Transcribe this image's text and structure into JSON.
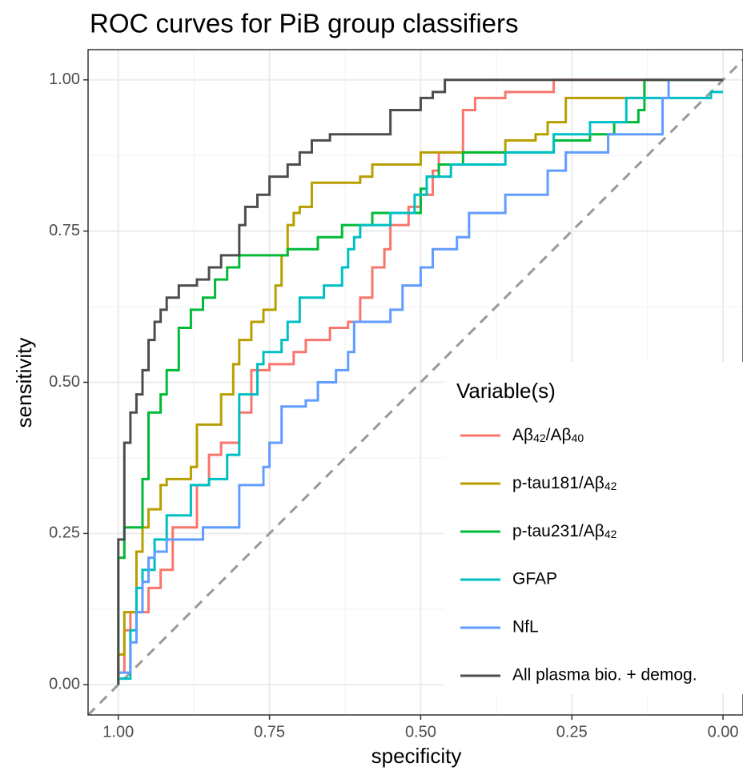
{
  "chart_data": {
    "type": "step-line",
    "title": "ROC curves for PiB group classifiers",
    "x_label": "specificity",
    "y_label": "sensitivity",
    "legend_title": "Variable(s)",
    "legend_position": "bottom-right",
    "xlim": [
      1.05,
      -0.033
    ],
    "ylim": [
      -0.05,
      1.05
    ],
    "xticks": [
      {
        "value": 1,
        "label": "1.00"
      },
      {
        "value": 0.75,
        "label": "0.75"
      },
      {
        "value": 0.5,
        "label": "0.50"
      },
      {
        "value": 0.25,
        "label": "0.25"
      },
      {
        "value": 0,
        "label": "0.00"
      }
    ],
    "yticks": [
      {
        "value": 0,
        "label": "0.00"
      },
      {
        "value": 0.25,
        "label": "0.25"
      },
      {
        "value": 0.5,
        "label": "0.50"
      },
      {
        "value": 0.75,
        "label": "0.75"
      },
      {
        "value": 1,
        "label": "1.00"
      }
    ],
    "grid": true,
    "diagonal": true,
    "series": [
      {
        "name": "Aβ42/Aβ40",
        "color": "#F8766D",
        "x": [
          1,
          1,
          0.99,
          0.99,
          0.98,
          0.98,
          0.95,
          0.95,
          0.93,
          0.93,
          0.91,
          0.91,
          0.87,
          0.87,
          0.85,
          0.85,
          0.83,
          0.83,
          0.8,
          0.8,
          0.78,
          0.78,
          0.75,
          0.75,
          0.71,
          0.71,
          0.69,
          0.69,
          0.65,
          0.65,
          0.62,
          0.62,
          0.6,
          0.6,
          0.58,
          0.58,
          0.56,
          0.56,
          0.55,
          0.55,
          0.52,
          0.52,
          0.5,
          0.5,
          0.48,
          0.48,
          0.47,
          0.47,
          0.43,
          0.43,
          0.41,
          0.41,
          0.36,
          0.36,
          0.28,
          0.28,
          0
        ],
        "values": [
          0,
          0.02,
          0.02,
          0.09,
          0.09,
          0.12,
          0.12,
          0.16,
          0.16,
          0.19,
          0.19,
          0.26,
          0.26,
          0.33,
          0.33,
          0.38,
          0.38,
          0.4,
          0.4,
          0.45,
          0.45,
          0.52,
          0.52,
          0.53,
          0.53,
          0.55,
          0.55,
          0.57,
          0.57,
          0.59,
          0.59,
          0.6,
          0.6,
          0.64,
          0.64,
          0.69,
          0.69,
          0.72,
          0.72,
          0.76,
          0.76,
          0.79,
          0.79,
          0.81,
          0.81,
          0.85,
          0.85,
          0.88,
          0.88,
          0.95,
          0.95,
          0.97,
          0.97,
          0.98,
          0.98,
          1,
          1
        ]
      },
      {
        "name": "p-tau181/Aβ42",
        "color": "#B79F00",
        "x": [
          1,
          1,
          0.99,
          0.99,
          0.97,
          0.97,
          0.96,
          0.96,
          0.95,
          0.95,
          0.93,
          0.93,
          0.92,
          0.92,
          0.88,
          0.88,
          0.87,
          0.87,
          0.83,
          0.83,
          0.81,
          0.81,
          0.8,
          0.8,
          0.78,
          0.78,
          0.76,
          0.76,
          0.74,
          0.74,
          0.73,
          0.73,
          0.72,
          0.72,
          0.71,
          0.71,
          0.7,
          0.7,
          0.68,
          0.68,
          0.6,
          0.6,
          0.58,
          0.58,
          0.5,
          0.5,
          0.36,
          0.36,
          0.31,
          0.31,
          0.29,
          0.29,
          0.26,
          0.26,
          0.13,
          0.13,
          0
        ],
        "values": [
          0,
          0.05,
          0.05,
          0.12,
          0.12,
          0.22,
          0.22,
          0.26,
          0.26,
          0.29,
          0.29,
          0.33,
          0.33,
          0.34,
          0.34,
          0.36,
          0.36,
          0.43,
          0.43,
          0.48,
          0.48,
          0.53,
          0.53,
          0.57,
          0.57,
          0.6,
          0.6,
          0.62,
          0.62,
          0.66,
          0.66,
          0.71,
          0.71,
          0.76,
          0.76,
          0.78,
          0.78,
          0.79,
          0.79,
          0.83,
          0.83,
          0.84,
          0.84,
          0.86,
          0.86,
          0.88,
          0.88,
          0.9,
          0.9,
          0.91,
          0.91,
          0.93,
          0.93,
          0.97,
          0.97,
          1,
          1
        ]
      },
      {
        "name": "p-tau231/Aβ42",
        "color": "#00BA38",
        "x": [
          1,
          1,
          0.99,
          0.99,
          0.96,
          0.96,
          0.95,
          0.95,
          0.93,
          0.93,
          0.92,
          0.92,
          0.9,
          0.9,
          0.88,
          0.88,
          0.86,
          0.86,
          0.84,
          0.84,
          0.82,
          0.82,
          0.8,
          0.8,
          0.72,
          0.72,
          0.67,
          0.67,
          0.63,
          0.63,
          0.58,
          0.58,
          0.5,
          0.5,
          0.49,
          0.49,
          0.47,
          0.47,
          0.43,
          0.43,
          0.28,
          0.28,
          0.22,
          0.22,
          0.18,
          0.18,
          0.14,
          0.14,
          0.13,
          0.13,
          0
        ],
        "values": [
          0,
          0.21,
          0.21,
          0.26,
          0.26,
          0.34,
          0.34,
          0.45,
          0.45,
          0.48,
          0.48,
          0.52,
          0.52,
          0.59,
          0.59,
          0.62,
          0.62,
          0.64,
          0.64,
          0.67,
          0.67,
          0.69,
          0.69,
          0.71,
          0.71,
          0.72,
          0.72,
          0.74,
          0.74,
          0.76,
          0.76,
          0.78,
          0.78,
          0.82,
          0.82,
          0.84,
          0.84,
          0.86,
          0.86,
          0.88,
          0.88,
          0.9,
          0.9,
          0.91,
          0.91,
          0.93,
          0.93,
          0.95,
          0.95,
          1,
          1
        ]
      },
      {
        "name": "GFAP",
        "color": "#00BFC4",
        "x": [
          1,
          1,
          0.98,
          0.98,
          0.97,
          0.97,
          0.96,
          0.96,
          0.94,
          0.94,
          0.92,
          0.92,
          0.88,
          0.88,
          0.85,
          0.85,
          0.82,
          0.82,
          0.8,
          0.8,
          0.77,
          0.77,
          0.76,
          0.76,
          0.73,
          0.73,
          0.72,
          0.72,
          0.7,
          0.7,
          0.66,
          0.66,
          0.63,
          0.63,
          0.62,
          0.62,
          0.61,
          0.61,
          0.6,
          0.6,
          0.55,
          0.55,
          0.51,
          0.51,
          0.49,
          0.49,
          0.45,
          0.45,
          0.36,
          0.36,
          0.28,
          0.28,
          0.22,
          0.22,
          0.16,
          0.16,
          0.02,
          0.02,
          0
        ],
        "values": [
          0,
          0.01,
          0.01,
          0.09,
          0.09,
          0.16,
          0.16,
          0.19,
          0.19,
          0.24,
          0.24,
          0.28,
          0.28,
          0.33,
          0.33,
          0.34,
          0.34,
          0.38,
          0.38,
          0.48,
          0.48,
          0.53,
          0.53,
          0.55,
          0.55,
          0.57,
          0.57,
          0.6,
          0.6,
          0.64,
          0.64,
          0.66,
          0.66,
          0.69,
          0.69,
          0.72,
          0.72,
          0.74,
          0.74,
          0.76,
          0.76,
          0.78,
          0.78,
          0.81,
          0.81,
          0.84,
          0.84,
          0.86,
          0.86,
          0.88,
          0.88,
          0.91,
          0.91,
          0.93,
          0.93,
          0.97,
          0.97,
          0.98,
          0.98
        ]
      },
      {
        "name": "NfL",
        "color": "#619CFF",
        "x": [
          1,
          1,
          0.98,
          0.98,
          0.97,
          0.97,
          0.96,
          0.96,
          0.95,
          0.95,
          0.94,
          0.94,
          0.92,
          0.92,
          0.86,
          0.86,
          0.8,
          0.8,
          0.76,
          0.76,
          0.75,
          0.75,
          0.73,
          0.73,
          0.69,
          0.69,
          0.67,
          0.67,
          0.64,
          0.64,
          0.62,
          0.62,
          0.61,
          0.61,
          0.55,
          0.55,
          0.53,
          0.53,
          0.5,
          0.5,
          0.48,
          0.48,
          0.44,
          0.44,
          0.42,
          0.42,
          0.36,
          0.36,
          0.29,
          0.29,
          0.26,
          0.26,
          0.19,
          0.19,
          0.1,
          0.1,
          0.09,
          0.09,
          0
        ],
        "values": [
          0,
          0.02,
          0.02,
          0.07,
          0.07,
          0.12,
          0.12,
          0.17,
          0.17,
          0.21,
          0.21,
          0.22,
          0.22,
          0.24,
          0.24,
          0.26,
          0.26,
          0.33,
          0.33,
          0.36,
          0.36,
          0.4,
          0.4,
          0.46,
          0.46,
          0.47,
          0.47,
          0.5,
          0.5,
          0.52,
          0.52,
          0.55,
          0.55,
          0.6,
          0.6,
          0.62,
          0.62,
          0.66,
          0.66,
          0.69,
          0.69,
          0.72,
          0.72,
          0.74,
          0.74,
          0.78,
          0.78,
          0.81,
          0.81,
          0.85,
          0.85,
          0.88,
          0.88,
          0.91,
          0.91,
          0.97,
          0.97,
          1,
          1
        ]
      },
      {
        "name": "All plasma bio. + demog.",
        "color": "#4D4D4D",
        "x": [
          1,
          1,
          0.99,
          0.99,
          0.98,
          0.98,
          0.97,
          0.97,
          0.96,
          0.96,
          0.95,
          0.95,
          0.94,
          0.94,
          0.93,
          0.93,
          0.92,
          0.92,
          0.9,
          0.9,
          0.87,
          0.87,
          0.85,
          0.85,
          0.83,
          0.83,
          0.8,
          0.8,
          0.79,
          0.79,
          0.77,
          0.77,
          0.75,
          0.75,
          0.72,
          0.72,
          0.7,
          0.7,
          0.68,
          0.68,
          0.65,
          0.65,
          0.55,
          0.55,
          0.5,
          0.5,
          0.48,
          0.48,
          0.46,
          0.46,
          0
        ],
        "values": [
          0,
          0.24,
          0.24,
          0.4,
          0.4,
          0.45,
          0.45,
          0.48,
          0.48,
          0.52,
          0.52,
          0.57,
          0.57,
          0.6,
          0.6,
          0.62,
          0.62,
          0.64,
          0.64,
          0.66,
          0.66,
          0.67,
          0.67,
          0.69,
          0.69,
          0.71,
          0.71,
          0.76,
          0.76,
          0.79,
          0.79,
          0.81,
          0.81,
          0.84,
          0.84,
          0.86,
          0.86,
          0.88,
          0.88,
          0.9,
          0.9,
          0.91,
          0.91,
          0.95,
          0.95,
          0.97,
          0.97,
          0.98,
          0.98,
          1,
          1
        ]
      }
    ]
  }
}
